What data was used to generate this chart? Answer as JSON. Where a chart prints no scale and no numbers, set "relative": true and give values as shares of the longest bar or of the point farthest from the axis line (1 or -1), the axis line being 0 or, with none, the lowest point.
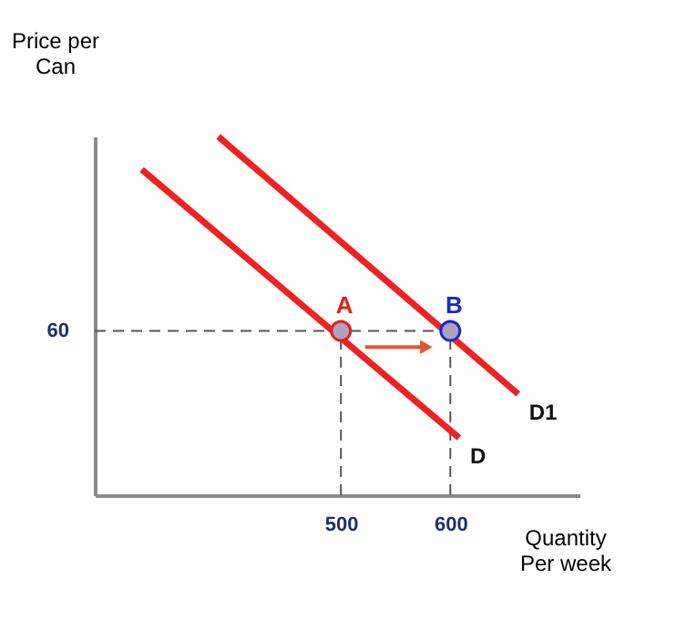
{
  "chart_data": {
    "type": "line",
    "xlabel": "Quantity\nPer week",
    "ylabel": "Price per\nCan",
    "xlim": [
      275,
      718
    ],
    "xticks": [
      500,
      600
    ],
    "relative": true,
    "annotations": [
      "60"
    ],
    "series": [
      {
        "name": "D",
        "color": "#ee2222",
        "x": [
          318,
          608
        ],
        "values": [
          0.908,
          0.16
        ]
      },
      {
        "name": "D1",
        "color": "#ee2222",
        "x": [
          388,
          662
        ],
        "values": [
          1.0,
          0.282
        ]
      },
      {
        "name": "A",
        "type": "scatter",
        "marker": "circle",
        "color": "#e02020",
        "x": [
          500
        ],
        "values": [
          0.458
        ]
      },
      {
        "name": "B",
        "type": "scatter",
        "marker": "circle",
        "color": "#1a2ad0",
        "x": [
          600
        ],
        "values": [
          0.458
        ]
      }
    ],
    "ref_lines": [
      {
        "axis": "x",
        "value": 500,
        "line_style": "dashed",
        "color": "#555555"
      },
      {
        "axis": "x",
        "value": 600,
        "line_style": "dashed",
        "color": "#555555"
      },
      {
        "axis": "y",
        "value": 0.458,
        "line_style": "dashed",
        "color": "#555555"
      }
    ],
    "legend": false,
    "grid": false
  }
}
